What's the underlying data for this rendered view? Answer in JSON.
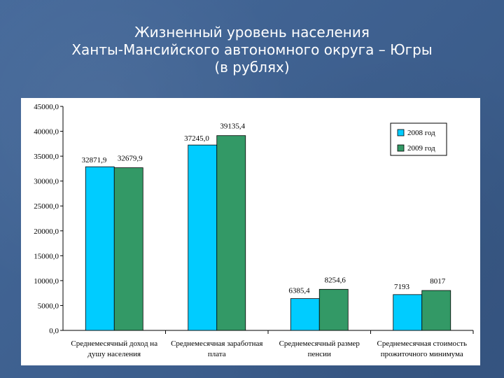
{
  "slide": {
    "title_lines": [
      "Жизненный уровень населения",
      "Ханты-Мансийского автономного округа – Югры",
      "(в рублях)"
    ]
  },
  "chart_data": {
    "type": "bar",
    "categories": [
      [
        "Среднемесячный доход на",
        "душу населения"
      ],
      [
        "Среднемесячная заработная",
        "плата"
      ],
      [
        "Среднемесячный размер",
        "пенсии"
      ],
      [
        "Среднемесячная стоимость",
        "прожиточного минимума"
      ]
    ],
    "series": [
      {
        "name": "2008 год",
        "color": "#00ccff",
        "values": [
          32871.9,
          37245.0,
          6385.4,
          7193
        ],
        "labels": [
          "32871,9",
          "37245,0",
          "6385,4",
          "7193"
        ]
      },
      {
        "name": "2009 год",
        "color": "#339966",
        "values": [
          32679.9,
          39135.4,
          8254.6,
          8017
        ],
        "labels": [
          "32679,9",
          "39135,4",
          "8254,6",
          "8017"
        ]
      }
    ],
    "ylim": [
      0,
      45000
    ],
    "yticks": [
      0,
      5000,
      10000,
      15000,
      20000,
      25000,
      30000,
      35000,
      40000,
      45000
    ],
    "ytick_labels": [
      "0,0",
      "5000,0",
      "10000,0",
      "15000,0",
      "20000,0",
      "25000,0",
      "30000,0",
      "35000,0",
      "40000,0",
      "45000,0"
    ],
    "legend_position": "top-right",
    "grid": false
  }
}
